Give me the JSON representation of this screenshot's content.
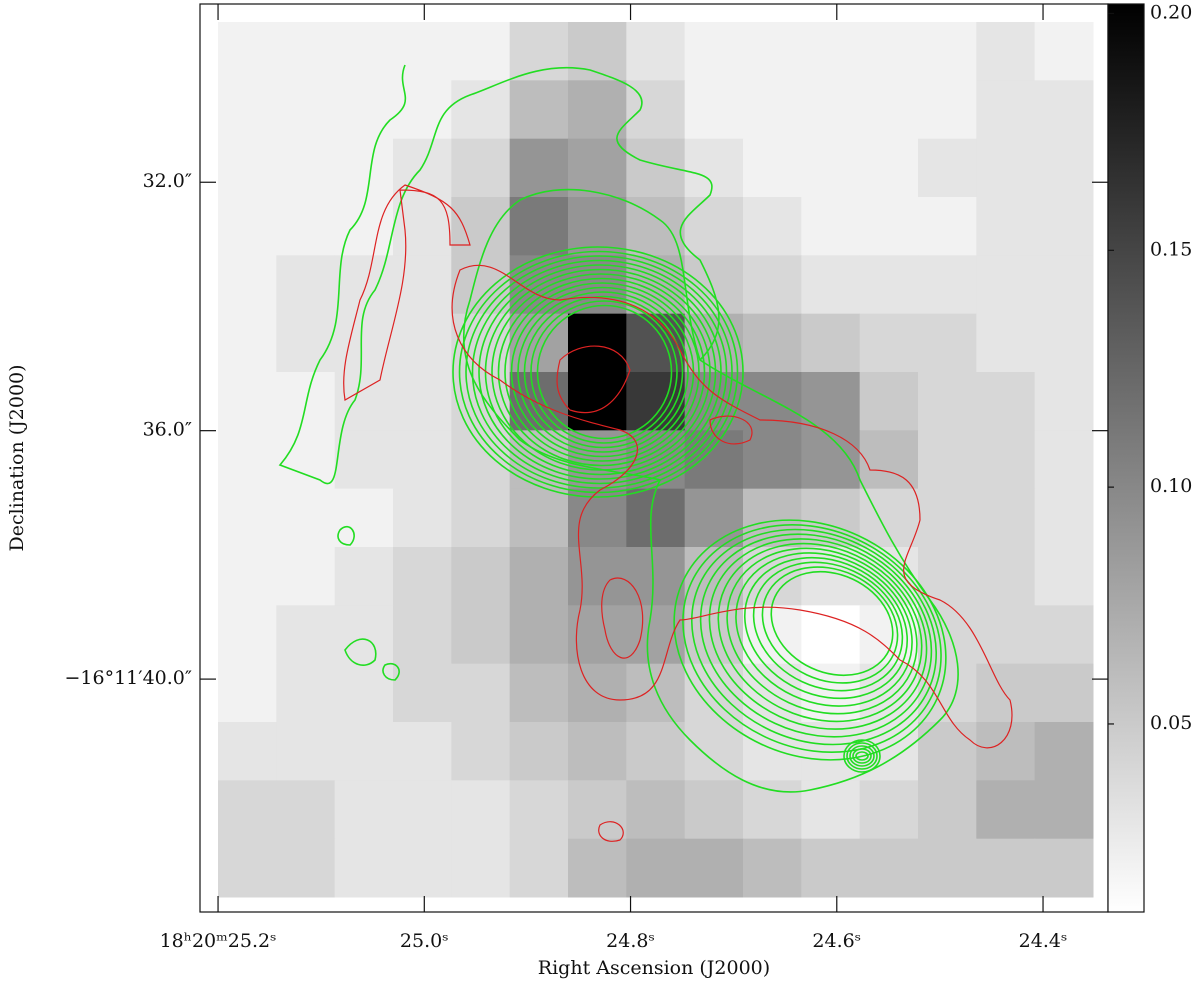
{
  "chart_data": {
    "type": "image",
    "x_label": "Right Ascension (J2000)",
    "y_label": "Declination (J2000)",
    "xlim": [
      25.2175,
      24.337
    ],
    "xticks": [
      {
        "value": 25.2,
        "label": "18ʰ20ᵐ25.2ˢ"
      },
      {
        "value": 25.0,
        "label": "25.0ˢ"
      },
      {
        "value": 24.8,
        "label": "24.8ˢ"
      },
      {
        "value": 24.6,
        "label": "24.6ˢ"
      },
      {
        "value": 24.4,
        "label": "24.4ˢ"
      }
    ],
    "ylim": [
      29.13,
      43.75
    ],
    "yticks": [
      {
        "value": 32,
        "label": "32.0″"
      },
      {
        "value": 36,
        "label": "36.0″"
      },
      {
        "value": 40,
        "label": "−16°11′40.0″"
      }
    ],
    "zlim": [
      0.0103,
      0.202
    ],
    "zticks": [
      0.05,
      {
        "value": 0.1,
        "label": "0.10"
      },
      0.15,
      {
        "value": 0.2,
        "label": "0.20"
      }
    ],
    "image": [
      [
        0.02,
        0.02,
        0.02,
        0.02,
        0.02,
        0.04,
        0.05,
        0.03,
        0.02,
        0.02,
        0.02,
        0.02,
        0.02,
        0.03,
        0.02
      ],
      [
        0.02,
        0.02,
        0.02,
        0.02,
        0.03,
        0.06,
        0.07,
        0.04,
        0.02,
        0.02,
        0.02,
        0.02,
        0.02,
        0.03,
        0.03
      ],
      [
        0.02,
        0.02,
        0.02,
        0.03,
        0.04,
        0.09,
        0.08,
        0.05,
        0.03,
        0.02,
        0.02,
        0.02,
        0.03,
        0.03,
        0.03
      ],
      [
        0.02,
        0.02,
        0.02,
        0.03,
        0.05,
        0.11,
        0.09,
        0.06,
        0.04,
        0.03,
        0.02,
        0.02,
        0.02,
        0.03,
        0.03
      ],
      [
        0.02,
        0.03,
        0.03,
        0.03,
        0.05,
        0.1,
        0.1,
        0.07,
        0.05,
        0.04,
        0.03,
        0.03,
        0.03,
        0.03,
        0.03
      ],
      [
        0.02,
        0.03,
        0.03,
        0.03,
        0.04,
        0.08,
        0.22,
        0.14,
        0.07,
        0.06,
        0.05,
        0.04,
        0.04,
        0.03,
        0.03
      ],
      [
        0.02,
        0.02,
        0.03,
        0.03,
        0.04,
        0.12,
        0.22,
        0.16,
        0.1,
        0.1,
        0.09,
        0.05,
        0.04,
        0.04,
        0.03
      ],
      [
        0.02,
        0.02,
        0.03,
        0.03,
        0.04,
        0.06,
        0.09,
        0.1,
        0.11,
        0.1,
        0.09,
        0.06,
        0.04,
        0.04,
        0.03
      ],
      [
        0.02,
        0.02,
        0.02,
        0.03,
        0.04,
        0.06,
        0.1,
        0.12,
        0.09,
        0.06,
        0.05,
        0.04,
        0.04,
        0.04,
        0.03
      ],
      [
        0.02,
        0.02,
        0.03,
        0.04,
        0.05,
        0.07,
        0.09,
        0.09,
        0.06,
        0.04,
        0.03,
        0.03,
        0.04,
        0.04,
        0.03
      ],
      [
        0.02,
        0.03,
        0.03,
        0.04,
        0.05,
        0.07,
        0.08,
        0.08,
        0.05,
        0.02,
        0.01,
        0.02,
        0.04,
        0.04,
        0.04
      ],
      [
        0.02,
        0.03,
        0.03,
        0.04,
        0.04,
        0.06,
        0.07,
        0.06,
        0.04,
        0.03,
        0.02,
        0.03,
        0.04,
        0.05,
        0.05
      ],
      [
        0.03,
        0.03,
        0.03,
        0.03,
        0.04,
        0.05,
        0.06,
        0.05,
        0.04,
        0.03,
        0.03,
        0.03,
        0.05,
        0.06,
        0.07
      ],
      [
        0.04,
        0.04,
        0.03,
        0.03,
        0.03,
        0.04,
        0.05,
        0.06,
        0.05,
        0.04,
        0.03,
        0.04,
        0.05,
        0.07,
        0.07
      ],
      [
        0.04,
        0.04,
        0.03,
        0.03,
        0.03,
        0.04,
        0.06,
        0.07,
        0.07,
        0.06,
        0.05,
        0.05,
        0.05,
        0.05,
        0.05
      ]
    ]
  }
}
